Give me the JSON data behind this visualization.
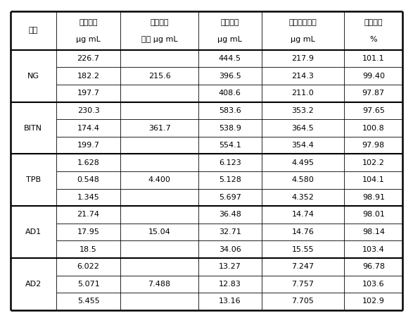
{
  "col_headers_line1": [
    "组分",
    "标准量，",
    "混合标准",
    "测定値，",
    "标标测定値，",
    "回收率，"
  ],
  "col_headers_line2": [
    "",
    "μg mL",
    "量， μg mL",
    "μg mL",
    "μg mL",
    "%"
  ],
  "groups": [
    {
      "name": "NG",
      "mixed_std": "215.6",
      "rows": [
        [
          "226.7",
          "444.5",
          "217.9",
          "101.1"
        ],
        [
          "182.2",
          "396.5",
          "214.3",
          "99.40"
        ],
        [
          "197.7",
          "408.6",
          "211.0",
          "97.87"
        ]
      ]
    },
    {
      "name": "BITN",
      "mixed_std": "361.7",
      "rows": [
        [
          "230.3",
          "583.6",
          "353.2",
          "97.65"
        ],
        [
          "174.4",
          "538.9",
          "364.5",
          "100.8"
        ],
        [
          "199.7",
          "554.1",
          "354.4",
          "97.98"
        ]
      ]
    },
    {
      "name": "TPB",
      "mixed_std": "4.400",
      "rows": [
        [
          "1.628",
          "6.123",
          "4.495",
          "102.2"
        ],
        [
          "0.548",
          "5.128",
          "4.580",
          "104.1"
        ],
        [
          "1.345",
          "5.697",
          "4.352",
          "98.91"
        ]
      ]
    },
    {
      "name": "AD1",
      "mixed_std": "15.04",
      "rows": [
        [
          "21.74",
          "36.48",
          "14.74",
          "98.01"
        ],
        [
          "17.95",
          "32.71",
          "14.76",
          "98.14"
        ],
        [
          "18.5",
          "34.06",
          "15.55",
          "103.4"
        ]
      ]
    },
    {
      "name": "AD2",
      "mixed_std": "7.488",
      "rows": [
        [
          "6.022",
          "13.27",
          "7.247",
          "96.78"
        ],
        [
          "5.071",
          "12.83",
          "7.757",
          "103.6"
        ],
        [
          "5.455",
          "13.16",
          "7.705",
          "102.9"
        ]
      ]
    }
  ],
  "figsize": [
    5.87,
    4.51
  ],
  "dpi": 100,
  "font_size": 8.0,
  "header_font_size": 8.0,
  "bg_color": "#ffffff",
  "text_color": "#000000",
  "col_props": [
    0.105,
    0.148,
    0.178,
    0.145,
    0.19,
    0.134
  ]
}
